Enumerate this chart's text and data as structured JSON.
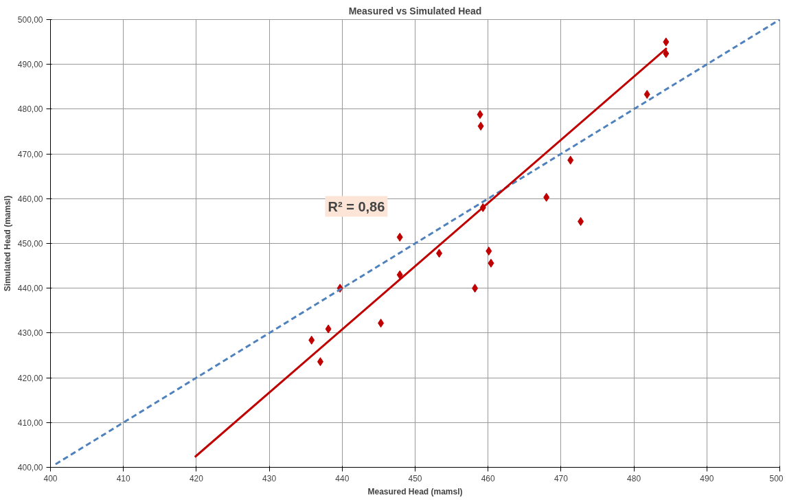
{
  "chart_data": {
    "type": "scatter",
    "title": "Measured vs Simulated Head",
    "xlabel": "Measured Head (mamsl)",
    "ylabel": "Simulated Head (mamsl)",
    "xlim": [
      400,
      500
    ],
    "ylim": [
      400,
      500
    ],
    "xticks": [
      400,
      410,
      420,
      430,
      440,
      450,
      460,
      470,
      480,
      490,
      500
    ],
    "yticks": [
      {
        "value": 400,
        "label": "400,00"
      },
      {
        "value": 410,
        "label": "410,00"
      },
      {
        "value": 420,
        "label": "420,00"
      },
      {
        "value": 430,
        "label": "430,00"
      },
      {
        "value": 440,
        "label": "440,00"
      },
      {
        "value": 450,
        "label": "450,00"
      },
      {
        "value": 460,
        "label": "460,00"
      },
      {
        "value": 470,
        "label": "470,00"
      },
      {
        "value": 480,
        "label": "480,00"
      },
      {
        "value": 490,
        "label": "490,00"
      },
      {
        "value": 500,
        "label": "500,00"
      }
    ],
    "grid": true,
    "annotations": [
      "R² = 0,86"
    ],
    "series": [
      {
        "marker": "diamond",
        "color": "#c00000",
        "x": [
          484.4,
          484.4,
          481.8,
          471.3,
          468.0,
          472.7,
          458.9,
          459.0,
          459.3,
          460.1,
          460.4,
          458.2,
          453.3,
          447.9,
          447.9,
          445.3,
          439.7,
          438.1,
          435.8,
          437.0
        ],
        "values": [
          495.0,
          492.4,
          483.3,
          468.6,
          460.3,
          454.9,
          478.8,
          476.2,
          458.0,
          448.3,
          445.6,
          440.0,
          447.8,
          451.4,
          443.0,
          432.2,
          440.0,
          430.9,
          428.4,
          423.6
        ]
      },
      {
        "type": "line",
        "marker": "none",
        "line_style": "dashed",
        "color": "#4f81bd",
        "x": [
          400.7,
          500
        ],
        "values": [
          400.7,
          500
        ]
      },
      {
        "type": "line",
        "marker": "none",
        "line_style": "solid",
        "color": "#c00000",
        "x": [
          419.8,
          484.5
        ],
        "values": [
          402.3,
          493.6
        ]
      }
    ]
  }
}
